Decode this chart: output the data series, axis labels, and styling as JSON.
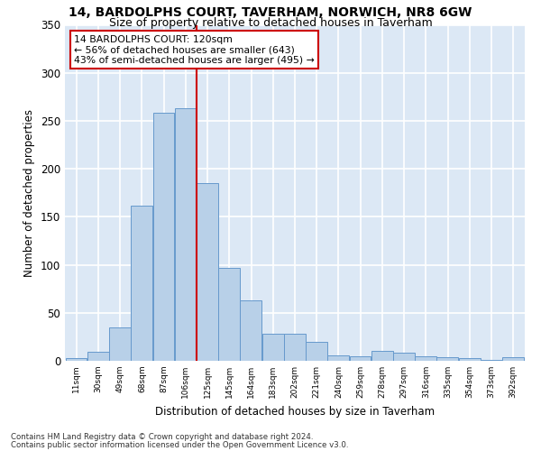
{
  "title": "14, BARDOLPHS COURT, TAVERHAM, NORWICH, NR8 6GW",
  "subtitle": "Size of property relative to detached houses in Taverham",
  "xlabel": "Distribution of detached houses by size in Taverham",
  "ylabel": "Number of detached properties",
  "bar_color": "#b8d0e8",
  "bar_edge_color": "#6699cc",
  "background_color": "#dce8f5",
  "fig_background": "#ffffff",
  "grid_color": "#ffffff",
  "categories": [
    "11sqm",
    "30sqm",
    "49sqm",
    "68sqm",
    "87sqm",
    "106sqm",
    "125sqm",
    "145sqm",
    "164sqm",
    "183sqm",
    "202sqm",
    "221sqm",
    "240sqm",
    "259sqm",
    "278sqm",
    "297sqm",
    "316sqm",
    "335sqm",
    "354sqm",
    "373sqm",
    "392sqm"
  ],
  "values": [
    3,
    9,
    35,
    162,
    258,
    263,
    185,
    97,
    63,
    28,
    28,
    20,
    6,
    5,
    10,
    8,
    5,
    4,
    3,
    1,
    4
  ],
  "property_label": "14 BARDOLPHS COURT: 120sqm",
  "annotation_line1": "← 56% of detached houses are smaller (643)",
  "annotation_line2": "43% of semi-detached houses are larger (495) →",
  "vline_color": "#cc0000",
  "annotation_box_color": "#ffffff",
  "annotation_box_edge": "#cc0000",
  "footnote1": "Contains HM Land Registry data © Crown copyright and database right 2024.",
  "footnote2": "Contains public sector information licensed under the Open Government Licence v3.0.",
  "ylim": [
    0,
    350
  ],
  "bin_width": 19,
  "vline_x": 125
}
